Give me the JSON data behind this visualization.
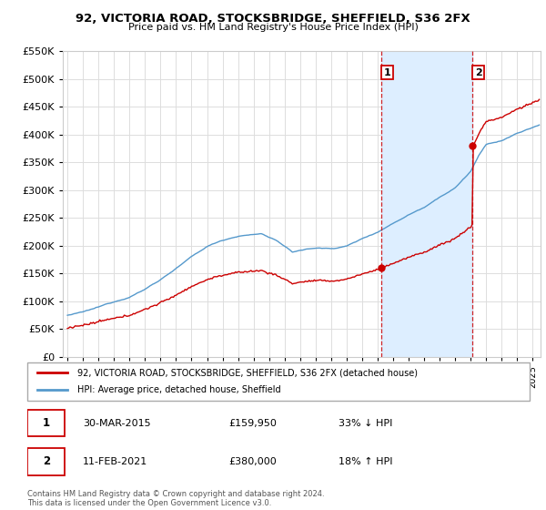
{
  "title": "92, VICTORIA ROAD, STOCKSBRIDGE, SHEFFIELD, S36 2FX",
  "subtitle": "Price paid vs. HM Land Registry's House Price Index (HPI)",
  "ylim": [
    0,
    550000
  ],
  "yticks": [
    0,
    50000,
    100000,
    150000,
    200000,
    250000,
    300000,
    350000,
    400000,
    450000,
    500000,
    550000
  ],
  "xlim_start": 1994.7,
  "xlim_end": 2025.5,
  "sale1_x": 2015.24,
  "sale1_y": 159950,
  "sale1_label": "1",
  "sale1_date": "30-MAR-2015",
  "sale1_price": "£159,950",
  "sale1_note": "33% ↓ HPI",
  "sale2_x": 2021.12,
  "sale2_y": 380000,
  "sale2_label": "2",
  "sale2_date": "11-FEB-2021",
  "sale2_price": "£380,000",
  "sale2_note": "18% ↑ HPI",
  "red_line_color": "#cc0000",
  "blue_line_color": "#5599cc",
  "shade_color": "#ddeeff",
  "dashed_line_color": "#cc0000",
  "legend1_text": "92, VICTORIA ROAD, STOCKSBRIDGE, SHEFFIELD, S36 2FX (detached house)",
  "legend2_text": "HPI: Average price, detached house, Sheffield",
  "footnote": "Contains HM Land Registry data © Crown copyright and database right 2024.\nThis data is licensed under the Open Government Licence v3.0.",
  "background_color": "#ffffff",
  "grid_color": "#dddddd"
}
